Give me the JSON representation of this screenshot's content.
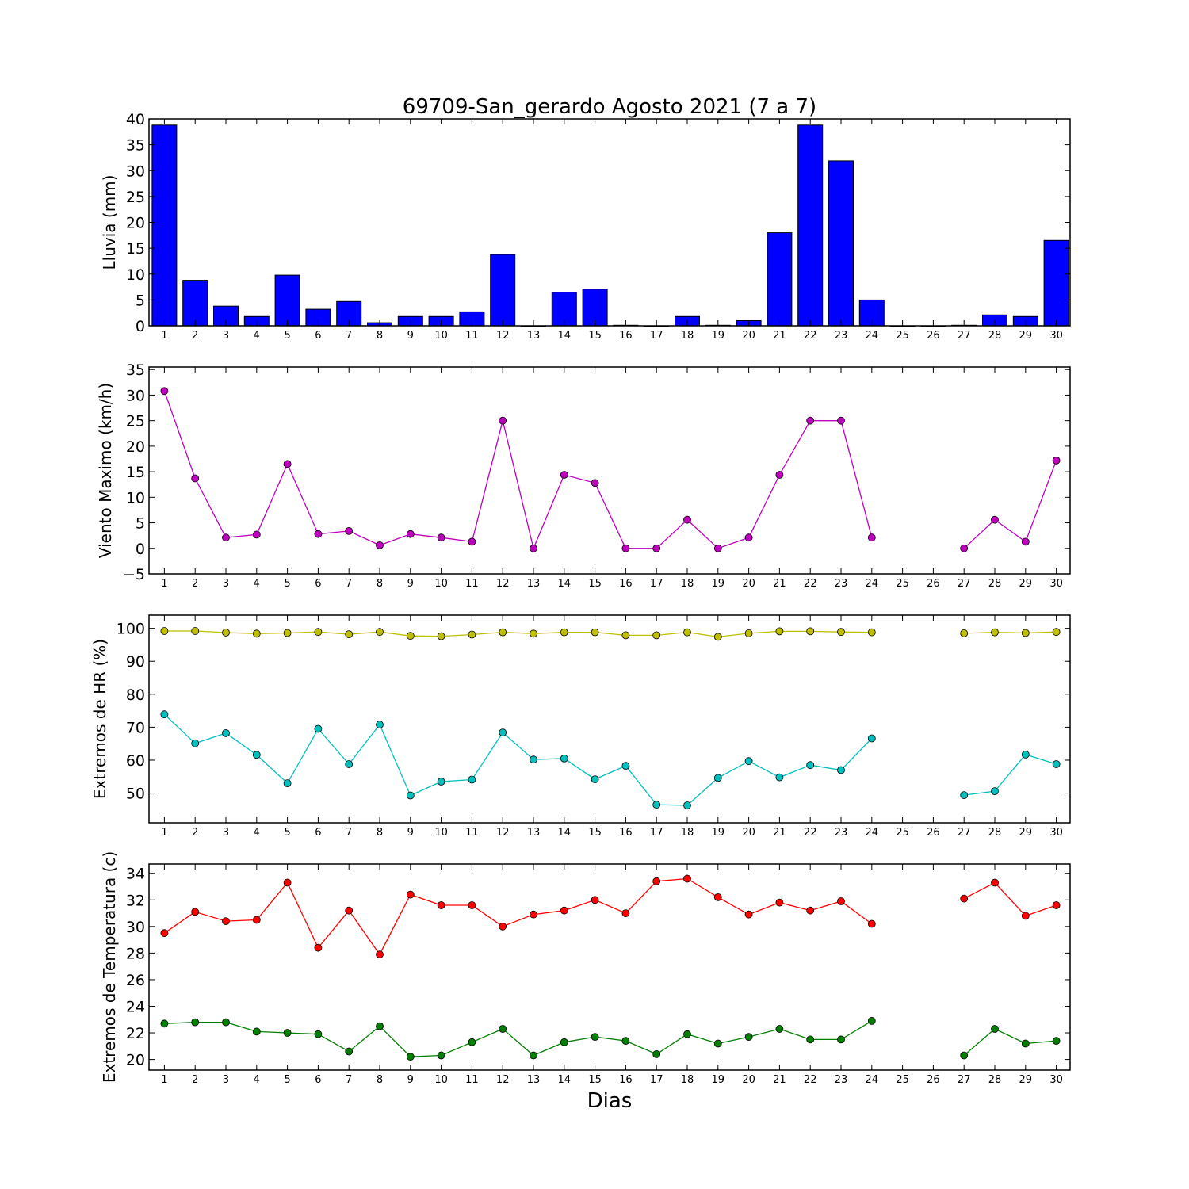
{
  "chart_data": [
    {
      "type": "bar",
      "title": "69709-San_gerardo Agosto 2021  (7 a 7)",
      "ylabel": "Lluvia (mm)",
      "xlabel": "",
      "ylim": [
        0,
        40
      ],
      "yticks": [
        0,
        5,
        10,
        15,
        20,
        25,
        30,
        35,
        40
      ],
      "categories": [
        "1",
        "2",
        "3",
        "4",
        "5",
        "6",
        "7",
        "8",
        "9",
        "10",
        "11",
        "12",
        "13",
        "14",
        "15",
        "16",
        "17",
        "18",
        "19",
        "20",
        "21",
        "22",
        "23",
        "24",
        "25",
        "26",
        "27",
        "28",
        "29",
        "30"
      ],
      "series": [
        {
          "color": "#0000ff",
          "values": [
            38.8,
            8.8,
            3.8,
            1.8,
            9.8,
            3.2,
            4.7,
            0.6,
            1.8,
            1.8,
            2.7,
            13.8,
            0,
            6.5,
            7.1,
            0.1,
            0,
            1.8,
            0.1,
            1.0,
            18.0,
            38.8,
            31.9,
            5.0,
            0,
            0,
            0.1,
            2.1,
            1.8,
            16.5
          ]
        }
      ]
    },
    {
      "type": "line",
      "title": "",
      "ylabel": "Viento Maximo (km/h)",
      "xlabel": "",
      "ylim": [
        -5,
        35.5
      ],
      "yticks": [
        -5,
        0,
        5,
        10,
        15,
        20,
        25,
        30,
        35
      ],
      "categories": [
        "1",
        "2",
        "3",
        "4",
        "5",
        "6",
        "7",
        "8",
        "9",
        "10",
        "11",
        "12",
        "13",
        "14",
        "15",
        "16",
        "17",
        "18",
        "19",
        "20",
        "21",
        "22",
        "23",
        "24",
        "25",
        "26",
        "27",
        "28",
        "29",
        "30"
      ],
      "series": [
        {
          "color": "#bf00bf",
          "values": [
            30.8,
            13.7,
            2.1,
            2.7,
            16.5,
            2.8,
            3.4,
            0.6,
            2.8,
            2.1,
            1.3,
            25.0,
            0,
            14.4,
            12.8,
            0,
            0,
            5.6,
            0,
            2.1,
            14.4,
            25.0,
            25.0,
            2.1,
            null,
            null,
            0,
            5.6,
            1.3,
            17.2
          ]
        }
      ]
    },
    {
      "type": "line",
      "title": "",
      "ylabel": "Extremos de HR (%)",
      "xlabel": "",
      "ylim": [
        41,
        104
      ],
      "yticks": [
        50,
        60,
        70,
        80,
        90,
        100
      ],
      "categories": [
        "1",
        "2",
        "3",
        "4",
        "5",
        "6",
        "7",
        "8",
        "9",
        "10",
        "11",
        "12",
        "13",
        "14",
        "15",
        "16",
        "17",
        "18",
        "19",
        "20",
        "21",
        "22",
        "23",
        "24",
        "25",
        "26",
        "27",
        "28",
        "29",
        "30"
      ],
      "series": [
        {
          "color": "#bfbf00",
          "values": [
            99.2,
            99.2,
            98.7,
            98.4,
            98.6,
            98.9,
            98.2,
            98.9,
            97.7,
            97.6,
            98.1,
            98.8,
            98.4,
            98.8,
            98.8,
            97.9,
            97.9,
            98.8,
            97.4,
            98.5,
            99.1,
            99.1,
            98.9,
            98.8,
            null,
            null,
            98.5,
            98.8,
            98.6,
            98.9
          ]
        },
        {
          "color": "#00bfbf",
          "values": [
            73.9,
            65.1,
            68.2,
            61.6,
            53.0,
            69.5,
            58.8,
            70.8,
            49.3,
            53.5,
            54.1,
            68.4,
            60.2,
            60.5,
            54.2,
            58.3,
            46.5,
            46.3,
            54.6,
            59.7,
            54.8,
            58.5,
            57.0,
            66.6,
            null,
            null,
            49.4,
            50.6,
            61.7,
            58.8
          ]
        }
      ]
    },
    {
      "type": "line",
      "title": "",
      "ylabel": "Extremos de Temperatura (c)",
      "xlabel": "Dias",
      "ylim": [
        19.2,
        34.7
      ],
      "yticks": [
        20,
        22,
        24,
        26,
        28,
        30,
        32,
        34
      ],
      "categories": [
        "1",
        "2",
        "3",
        "4",
        "5",
        "6",
        "7",
        "8",
        "9",
        "10",
        "11",
        "12",
        "13",
        "14",
        "15",
        "16",
        "17",
        "18",
        "19",
        "20",
        "21",
        "22",
        "23",
        "24",
        "25",
        "26",
        "27",
        "28",
        "29",
        "30"
      ],
      "series": [
        {
          "color": "#ff0000",
          "values": [
            29.5,
            31.1,
            30.4,
            30.5,
            33.3,
            28.4,
            31.2,
            27.9,
            32.4,
            31.6,
            31.6,
            30.0,
            30.9,
            31.2,
            32.0,
            31.0,
            33.4,
            33.6,
            32.2,
            30.9,
            31.8,
            31.2,
            31.9,
            30.2,
            null,
            null,
            32.1,
            33.3,
            30.8,
            31.6
          ]
        },
        {
          "color": "#007f00",
          "values": [
            22.7,
            22.8,
            22.8,
            22.1,
            22.0,
            21.9,
            20.6,
            22.5,
            20.2,
            20.3,
            21.3,
            22.3,
            20.3,
            21.3,
            21.7,
            21.4,
            20.4,
            21.9,
            21.2,
            21.7,
            22.3,
            21.5,
            21.5,
            22.9,
            null,
            null,
            20.3,
            22.3,
            21.2,
            21.4
          ]
        }
      ]
    }
  ]
}
